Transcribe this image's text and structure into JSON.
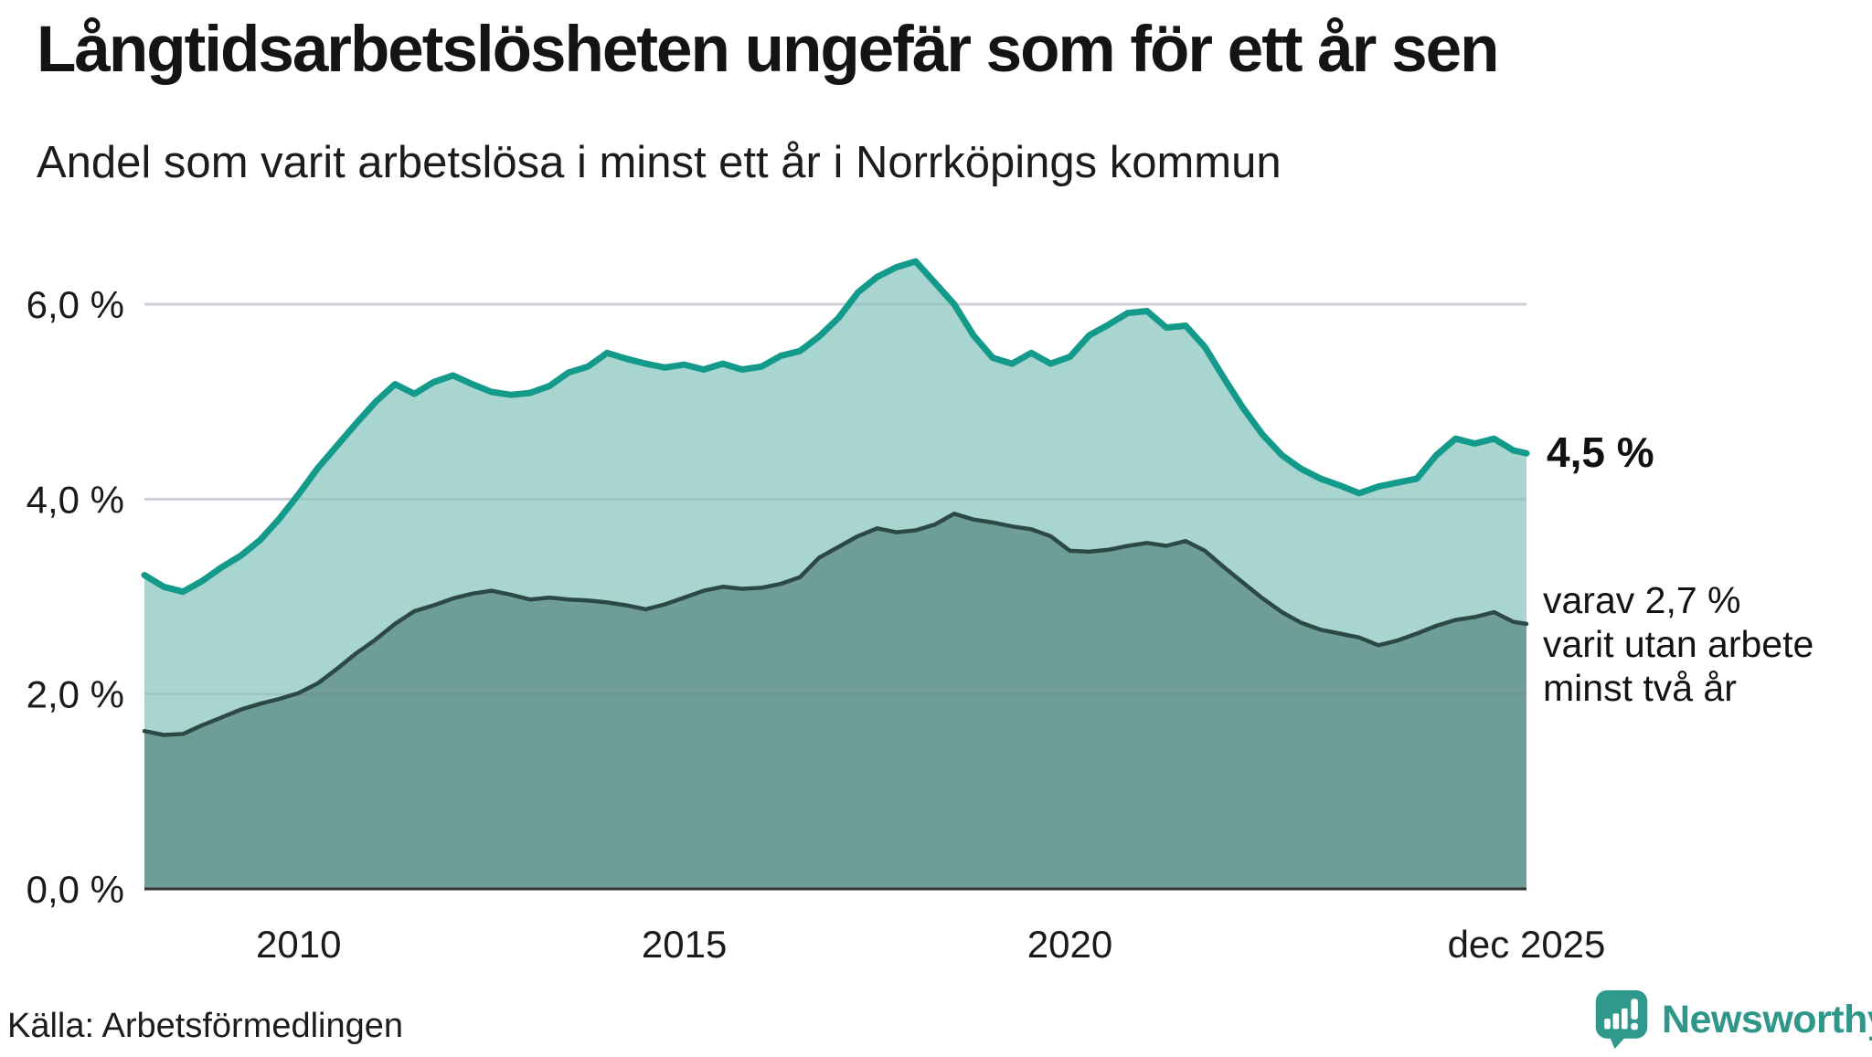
{
  "header": {
    "title": "Långtidsarbetslösheten ungefär som för ett år sen",
    "subtitle": "Andel som varit arbetslösa i minst ett år i Norrköpings kommun"
  },
  "annotations": {
    "latest_value": "4,5 %",
    "note_lines": [
      "varav 2,7 %",
      "varit utan arbete",
      "minst två år"
    ]
  },
  "source": {
    "label": "Källa: Arbetsförmedlingen"
  },
  "branding": {
    "name": "Newsworthy",
    "brand_color": "#2E978A",
    "icon": "chart-speech-bubble"
  },
  "chart_data": {
    "type": "area",
    "title": "Långtidsarbetslösheten ungefär som för ett år sen",
    "xlabel": "",
    "ylabel": "",
    "xlim": [
      2008.0,
      2025.92
    ],
    "ylim": [
      0,
      6.5
    ],
    "grid": true,
    "legend_position": "none",
    "gridline_color": "#E0E2E7",
    "axis_line_color": "#333333",
    "yticks": [
      {
        "value": 0,
        "label": "0,0 %"
      },
      {
        "value": 2,
        "label": "2,0 %"
      },
      {
        "value": 4,
        "label": "4,0 %"
      },
      {
        "value": 6,
        "label": "6,0 %"
      }
    ],
    "xticks": [
      {
        "year": 2010,
        "label": "2010"
      },
      {
        "year": 2015,
        "label": "2015"
      },
      {
        "year": 2020,
        "label": "2020"
      },
      {
        "year": 2025.92,
        "label": "dec 2025"
      }
    ],
    "x": [
      2008.0,
      2008.25,
      2008.5,
      2008.75,
      2009.0,
      2009.25,
      2009.5,
      2009.75,
      2010.0,
      2010.25,
      2010.5,
      2010.75,
      2011.0,
      2011.25,
      2011.5,
      2011.75,
      2012.0,
      2012.25,
      2012.5,
      2012.75,
      2013.0,
      2013.25,
      2013.5,
      2013.75,
      2014.0,
      2014.25,
      2014.5,
      2014.75,
      2015.0,
      2015.25,
      2015.5,
      2015.75,
      2016.0,
      2016.25,
      2016.5,
      2016.75,
      2017.0,
      2017.25,
      2017.5,
      2017.75,
      2018.0,
      2018.25,
      2018.5,
      2018.75,
      2019.0,
      2019.25,
      2019.5,
      2019.75,
      2020.0,
      2020.25,
      2020.5,
      2020.75,
      2021.0,
      2021.25,
      2021.5,
      2021.75,
      2022.0,
      2022.25,
      2022.5,
      2022.75,
      2023.0,
      2023.25,
      2023.5,
      2023.75,
      2024.0,
      2024.25,
      2024.5,
      2024.75,
      2025.0,
      2025.25,
      2025.5,
      2025.75,
      2025.92
    ],
    "series": [
      {
        "name": "Arbetslösa minst ett år",
        "color": "#149A8B",
        "fill": "#A8D5CF",
        "latest_label": "4,5 %",
        "values": [
          3.22,
          3.1,
          3.05,
          3.16,
          3.3,
          3.42,
          3.58,
          3.8,
          4.05,
          4.32,
          4.55,
          4.78,
          5.0,
          5.18,
          5.08,
          5.2,
          5.27,
          5.18,
          5.1,
          5.07,
          5.09,
          5.16,
          5.3,
          5.36,
          5.5,
          5.44,
          5.39,
          5.35,
          5.38,
          5.33,
          5.39,
          5.33,
          5.36,
          5.47,
          5.52,
          5.67,
          5.86,
          6.12,
          6.28,
          6.38,
          6.44,
          6.22,
          6.0,
          5.68,
          5.45,
          5.39,
          5.5,
          5.39,
          5.46,
          5.68,
          5.79,
          5.91,
          5.93,
          5.76,
          5.78,
          5.56,
          5.24,
          4.93,
          4.66,
          4.45,
          4.31,
          4.21,
          4.14,
          4.06,
          4.13,
          4.17,
          4.21,
          4.45,
          4.62,
          4.57,
          4.62,
          4.5,
          4.47
        ]
      },
      {
        "name": "varav varit utan arbete minst två år",
        "color": "#2C4945",
        "fill": "#6F9D98",
        "latest_label": "varav 2,7 %",
        "values": [
          1.62,
          1.58,
          1.59,
          1.68,
          1.76,
          1.84,
          1.9,
          1.95,
          2.01,
          2.11,
          2.26,
          2.42,
          2.56,
          2.72,
          2.85,
          2.91,
          2.98,
          3.03,
          3.06,
          3.02,
          2.97,
          2.99,
          2.97,
          2.96,
          2.94,
          2.91,
          2.87,
          2.92,
          2.99,
          3.06,
          3.1,
          3.08,
          3.09,
          3.13,
          3.2,
          3.4,
          3.51,
          3.62,
          3.7,
          3.66,
          3.68,
          3.74,
          3.85,
          3.79,
          3.76,
          3.72,
          3.69,
          3.62,
          3.47,
          3.46,
          3.48,
          3.52,
          3.55,
          3.52,
          3.57,
          3.47,
          3.3,
          3.14,
          2.98,
          2.84,
          2.73,
          2.66,
          2.62,
          2.58,
          2.5,
          2.55,
          2.62,
          2.7,
          2.76,
          2.79,
          2.84,
          2.74,
          2.72
        ]
      }
    ]
  }
}
